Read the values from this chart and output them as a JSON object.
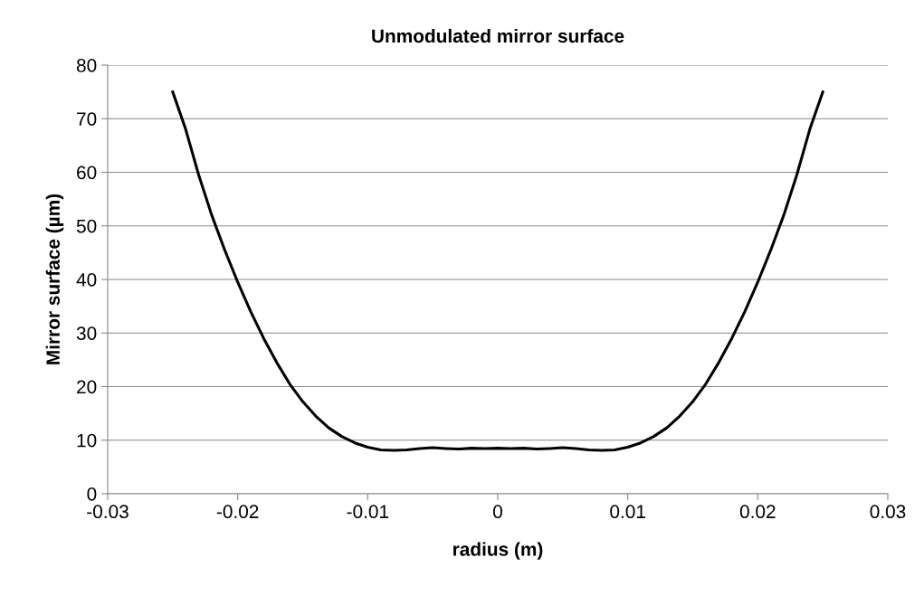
{
  "chart_data": {
    "type": "line",
    "title": "Unmodulated mirror surface",
    "xlabel": "radius (m)",
    "ylabel": "Mirror surface (µm)",
    "x": [
      -0.025,
      -0.024,
      -0.023,
      -0.022,
      -0.021,
      -0.02,
      -0.019,
      -0.018,
      -0.017,
      -0.016,
      -0.015,
      -0.014,
      -0.013,
      -0.012,
      -0.011,
      -0.01,
      -0.009,
      -0.008,
      -0.007,
      -0.006,
      -0.005,
      -0.004,
      -0.003,
      -0.002,
      -0.001,
      0,
      0.001,
      0.002,
      0.003,
      0.004,
      0.005,
      0.006,
      0.007,
      0.008,
      0.009,
      0.01,
      0.011,
      0.012,
      0.013,
      0.014,
      0.015,
      0.016,
      0.017,
      0.018,
      0.019,
      0.02,
      0.021,
      0.022,
      0.023,
      0.024,
      0.025
    ],
    "series": [
      {
        "color": "#000000",
        "values": [
          75,
          68,
          59.5,
          52,
          45.5,
          39.5,
          34,
          29,
          24.5,
          20.5,
          17.2,
          14.5,
          12.3,
          10.7,
          9.5,
          8.7,
          8.2,
          8.1,
          8.2,
          8.45,
          8.6,
          8.45,
          8.35,
          8.5,
          8.45,
          8.5,
          8.45,
          8.5,
          8.35,
          8.45,
          8.6,
          8.45,
          8.2,
          8.1,
          8.2,
          8.7,
          9.5,
          10.7,
          12.3,
          14.5,
          17.2,
          20.5,
          24.5,
          29,
          34,
          39.5,
          45.5,
          52,
          59.5,
          68,
          75
        ]
      }
    ],
    "xlim": [
      -0.03,
      0.03
    ],
    "xticks": [
      -0.03,
      -0.02,
      -0.01,
      0,
      0.01,
      0.02,
      0.03
    ],
    "ylim": [
      0,
      80
    ],
    "yticks": [
      0,
      10,
      20,
      30,
      40,
      50,
      60,
      70,
      80
    ],
    "grid": "y",
    "legend": false,
    "marker": "none",
    "line_style": "solid"
  }
}
